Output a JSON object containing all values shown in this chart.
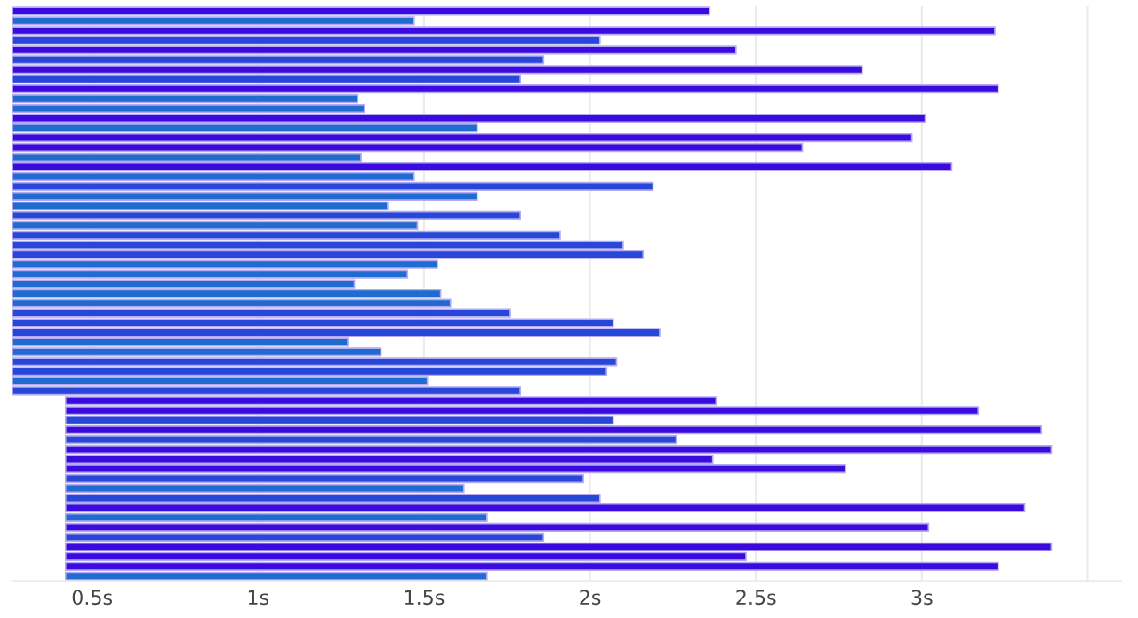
{
  "chart_data": {
    "type": "bar",
    "orientation": "horizontal",
    "categories": [
      null,
      null,
      null,
      null,
      null,
      null,
      null,
      null,
      null,
      null,
      null,
      null,
      null,
      null,
      null,
      null,
      null,
      null,
      null,
      null,
      null,
      null,
      null,
      null,
      null,
      null,
      null,
      null,
      null,
      null,
      null,
      null,
      null,
      null,
      null,
      null,
      null,
      null,
      null,
      null,
      null,
      null,
      null,
      null,
      null,
      null,
      null,
      null,
      null,
      null,
      null,
      null,
      null,
      null,
      null,
      null,
      null,
      null,
      null
    ],
    "base": [
      0.26,
      0.26,
      0.26,
      0.26,
      0.26,
      0.26,
      0.26,
      0.26,
      0.26,
      0.26,
      0.26,
      0.26,
      0.26,
      0.26,
      0.26,
      0.26,
      0.26,
      0.26,
      0.26,
      0.26,
      0.26,
      0.26,
      0.26,
      0.26,
      0.26,
      0.26,
      0.26,
      0.26,
      0.26,
      0.26,
      0.26,
      0.26,
      0.26,
      0.26,
      0.26,
      0.26,
      0.26,
      0.26,
      0.26,
      0.26,
      0.42,
      0.42,
      0.42,
      0.42,
      0.42,
      0.42,
      0.42,
      0.42,
      0.42,
      0.42,
      0.42,
      0.42,
      0.42,
      0.42,
      0.42,
      0.42,
      0.42,
      0.42,
      0.42
    ],
    "values": [
      2.1,
      1.21,
      2.96,
      1.77,
      2.18,
      1.6,
      2.56,
      1.53,
      2.97,
      1.04,
      1.06,
      2.75,
      1.4,
      2.71,
      2.38,
      1.05,
      2.83,
      1.21,
      1.93,
      1.4,
      1.13,
      1.53,
      1.22,
      1.65,
      1.84,
      1.9,
      1.28,
      1.19,
      1.03,
      1.29,
      1.32,
      1.5,
      1.81,
      1.95,
      1.01,
      1.11,
      1.82,
      1.79,
      1.25,
      1.53,
      1.96,
      2.75,
      1.65,
      2.94,
      1.84,
      2.97,
      1.95,
      2.35,
      1.56,
      1.2,
      1.61,
      2.89,
      1.27,
      2.6,
      1.44,
      2.97,
      2.05,
      2.81,
      1.27
    ],
    "colors": [
      "#3b0ade",
      "#1f6bd0",
      "#3b0ade",
      "#2747d9",
      "#3b0ade",
      "#2747d9",
      "#3b0ade",
      "#2747d9",
      "#3b0ade",
      "#1f6bd0",
      "#1f6bd0",
      "#3b0ade",
      "#1f6bd0",
      "#3b0ade",
      "#3b0ade",
      "#1f6bd0",
      "#3b0ade",
      "#1f6bd0",
      "#2747d9",
      "#1f6bd0",
      "#1f6bd0",
      "#2747d9",
      "#1f6bd0",
      "#2747d9",
      "#2747d9",
      "#2747d9",
      "#1f6bd0",
      "#1f6bd0",
      "#1f6bd0",
      "#1f6bd0",
      "#1f6bd0",
      "#2747d9",
      "#2747d9",
      "#2747d9",
      "#1f6bd0",
      "#1f6bd0",
      "#2747d9",
      "#2747d9",
      "#1f6bd0",
      "#2747d9",
      "#3b0ade",
      "#3b0ade",
      "#2747d9",
      "#3b0ade",
      "#2747d9",
      "#3b0ade",
      "#3b0ade",
      "#3b0ade",
      "#2747d9",
      "#1f6bd0",
      "#2747d9",
      "#3b0ade",
      "#1f6bd0",
      "#3b0ade",
      "#2747d9",
      "#3b0ade",
      "#3b0ade",
      "#3b0ade",
      "#1f6bd0"
    ],
    "xlim": [
      0.26,
      3.6
    ],
    "xticks": [
      {
        "value": 0.5,
        "label": "0.5s"
      },
      {
        "value": 1,
        "label": "1s"
      },
      {
        "value": 1.5,
        "label": "1.5s"
      },
      {
        "value": 2,
        "label": "2s"
      },
      {
        "value": 2.5,
        "label": "2.5s"
      },
      {
        "value": 3,
        "label": "3s"
      },
      {
        "value": 3.5,
        "label": null
      }
    ],
    "grid": "x"
  }
}
